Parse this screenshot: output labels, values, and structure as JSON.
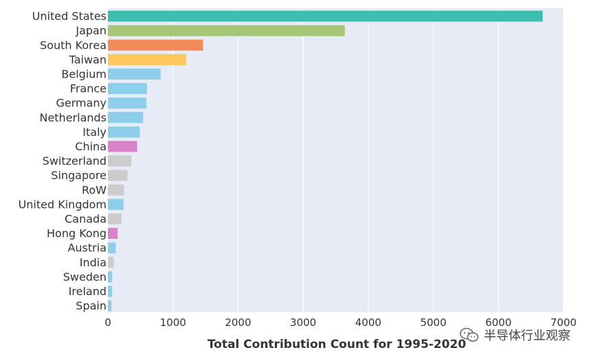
{
  "chart_data": {
    "type": "bar",
    "orientation": "horizontal",
    "xlabel": "Total Contribution Count for 1995-2020",
    "xlim": [
      0,
      7000
    ],
    "xticks": [
      0,
      1000,
      2000,
      3000,
      4000,
      5000,
      6000,
      7000
    ],
    "grid": true,
    "background": "#e6ebf5",
    "categories": [
      "United States",
      "Japan",
      "South Korea",
      "Taiwan",
      "Belgium",
      "France",
      "Germany",
      "Netherlands",
      "Italy",
      "China",
      "Switzerland",
      "Singapore",
      "RoW",
      "United Kingdom",
      "Canada",
      "Hong Kong",
      "Austria",
      "India",
      "Sweden",
      "Ireland",
      "Spain"
    ],
    "values": [
      6680,
      3640,
      1460,
      1200,
      810,
      600,
      590,
      540,
      490,
      450,
      360,
      300,
      250,
      240,
      210,
      150,
      120,
      90,
      65,
      65,
      55
    ],
    "colors": [
      "#3dbfad",
      "#a5c676",
      "#f28b5a",
      "#fdc85a",
      "#8dcfeb",
      "#8dcfeb",
      "#8dcfeb",
      "#8dcfeb",
      "#8dcfeb",
      "#d882c9",
      "#cccccc",
      "#cccccc",
      "#cccccc",
      "#8dcfeb",
      "#cccccc",
      "#d882c9",
      "#8dcfeb",
      "#cccccc",
      "#8dcfeb",
      "#8dcfeb",
      "#8dcfeb"
    ]
  },
  "watermark": {
    "text": "半导体行业观察",
    "icon": "wechat-icon"
  }
}
